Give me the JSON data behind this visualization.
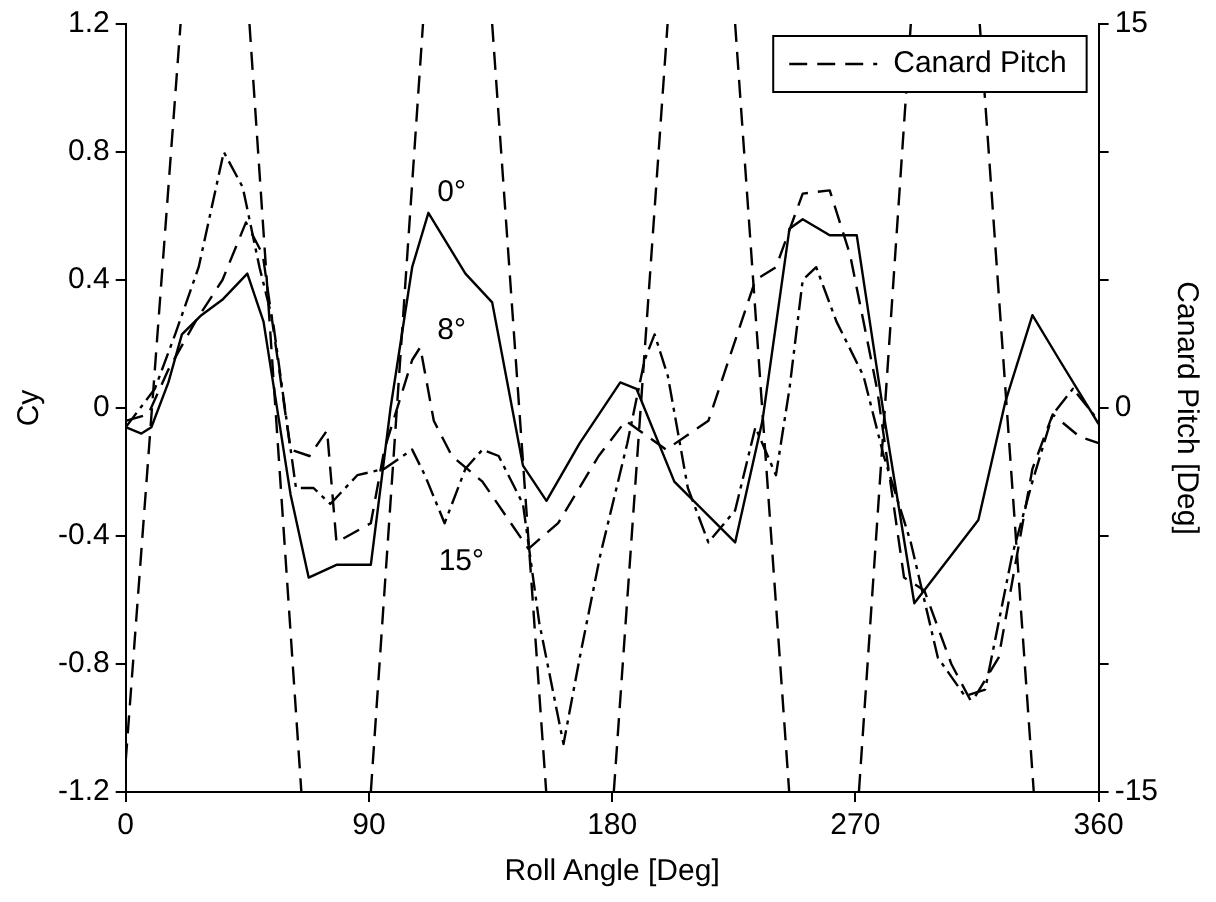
{
  "chart_data": {
    "type": "line",
    "xlabel": "Roll Angle [Deg]",
    "ylabel": "Cy",
    "y2label": "Canard Pitch [Deg]",
    "xlim": [
      0,
      360
    ],
    "xticks": [
      0,
      90,
      180,
      270,
      360
    ],
    "ylim": [
      -1.2,
      1.2
    ],
    "yticks": [
      -1.2,
      -0.8,
      -0.4,
      0,
      0.4,
      0.8,
      1.2
    ],
    "y2lim": [
      -15,
      15
    ],
    "y2ticks": [
      -15,
      {
        "value": -10,
        "label": null
      },
      {
        "value": -5,
        "label": null
      },
      0,
      {
        "value": 5,
        "label": null
      },
      {
        "value": 10,
        "label": null
      },
      15
    ],
    "grid": false,
    "legend": "top right",
    "marker": "none",
    "annotations": [
      "0°",
      "8°",
      "15°"
    ],
    "series": [
      {
        "color": "#000000",
        "line_style": "solid",
        "x": [
          0,
          5.8,
          9.5,
          15.8,
          20.8,
          28,
          36,
          45,
          51,
          61,
          67.7,
          78,
          90.7,
          98,
          106,
          112,
          125.7,
          135.6,
          147,
          155.7,
          168,
          183,
          189,
          203,
          225.5,
          235.6,
          245.6,
          250.5,
          260.5,
          270.5,
          280.5,
          291.8,
          315.5,
          325.5,
          335.5,
          345.5,
          360
        ],
        "values": [
          -0.06,
          -0.08,
          -0.06,
          0.08,
          0.23,
          0.29,
          0.34,
          0.42,
          0.27,
          -0.27,
          -0.53,
          -0.49,
          -0.49,
          0,
          0.44,
          0.61,
          0.42,
          0.33,
          -0.18,
          -0.29,
          -0.11,
          0.08,
          0.06,
          -0.23,
          -0.42,
          -0.04,
          0.56,
          0.59,
          0.54,
          0.54,
          -0.02,
          -0.61,
          -0.35,
          0.02,
          0.29,
          0.15,
          -0.05
        ]
      },
      {
        "color": "#000000",
        "line_style": "dashed",
        "x": [
          0,
          8.3,
          15.8,
          25.8,
          35.8,
          44.5,
          50.7,
          61,
          68,
          74.5,
          78,
          90.7,
          95.7,
          106,
          109,
          114,
          120.7,
          132,
          149,
          160,
          175,
          185,
          200,
          215.6,
          233,
          240.6,
          250.5,
          260.5,
          268,
          278,
          288,
          295.5,
          305.5,
          313,
          323,
          335.5,
          343,
          353,
          360
        ],
        "values": [
          -0.04,
          -0.02,
          0.12,
          0.27,
          0.4,
          0.58,
          0.48,
          -0.13,
          -0.15,
          -0.07,
          -0.42,
          -0.36,
          -0.13,
          0.15,
          0.19,
          -0.04,
          -0.15,
          -0.23,
          -0.44,
          -0.36,
          -0.15,
          -0.04,
          -0.13,
          -0.04,
          0.4,
          0.44,
          0.67,
          0.68,
          0.48,
          0.06,
          -0.53,
          -0.57,
          -0.8,
          -0.92,
          -0.78,
          -0.19,
          -0.02,
          -0.09,
          -0.11
        ]
      },
      {
        "color": "#000000",
        "line_style": "dashdot",
        "x": [
          0,
          10.8,
          18.3,
          27,
          36.3,
          43.3,
          49.5,
          54.5,
          63,
          69.5,
          75.7,
          85.7,
          95.7,
          106,
          110.7,
          118,
          125.7,
          132,
          138,
          147,
          153,
          162,
          168,
          175.6,
          185.6,
          192,
          195.7,
          200.6,
          208,
          215.6,
          225.5,
          233,
          240.6,
          245.6,
          250.5,
          255.5,
          263,
          273,
          280.5,
          290.5,
          300.5,
          310.5,
          318,
          328,
          335.5,
          343,
          350.5,
          360
        ],
        "values": [
          -0.06,
          0.06,
          0.23,
          0.44,
          0.8,
          0.69,
          0.44,
          0.27,
          -0.25,
          -0.25,
          -0.3,
          -0.21,
          -0.19,
          -0.13,
          -0.21,
          -0.36,
          -0.19,
          -0.13,
          -0.15,
          -0.3,
          -0.67,
          -1.05,
          -0.78,
          -0.46,
          -0.11,
          0.15,
          0.23,
          0.1,
          -0.25,
          -0.42,
          -0.32,
          -0.06,
          -0.21,
          0.06,
          0.4,
          0.44,
          0.27,
          0.1,
          -0.15,
          -0.42,
          -0.78,
          -0.9,
          -0.88,
          -0.46,
          -0.23,
          -0.02,
          0.06,
          -0.04
        ]
      },
      {
        "name": "Canard Pitch",
        "color": "#000000",
        "line_style": "dashed",
        "axis": "y2",
        "x": [
          0,
          20.3,
          33,
          45.8,
          65,
          78,
          90.7,
          110,
          122,
          135.6,
          155.6,
          168,
          180.6,
          200.5,
          213,
          225.5,
          245.5,
          258,
          271.3,
          290.5,
          303,
          316,
          336
        ],
        "values": [
          -13.8,
          15,
          null,
          15,
          -15,
          null,
          -15,
          15,
          null,
          15,
          -15,
          null,
          -15,
          15,
          null,
          15,
          -15,
          null,
          -15,
          15,
          null,
          15,
          -15
        ]
      }
    ]
  }
}
